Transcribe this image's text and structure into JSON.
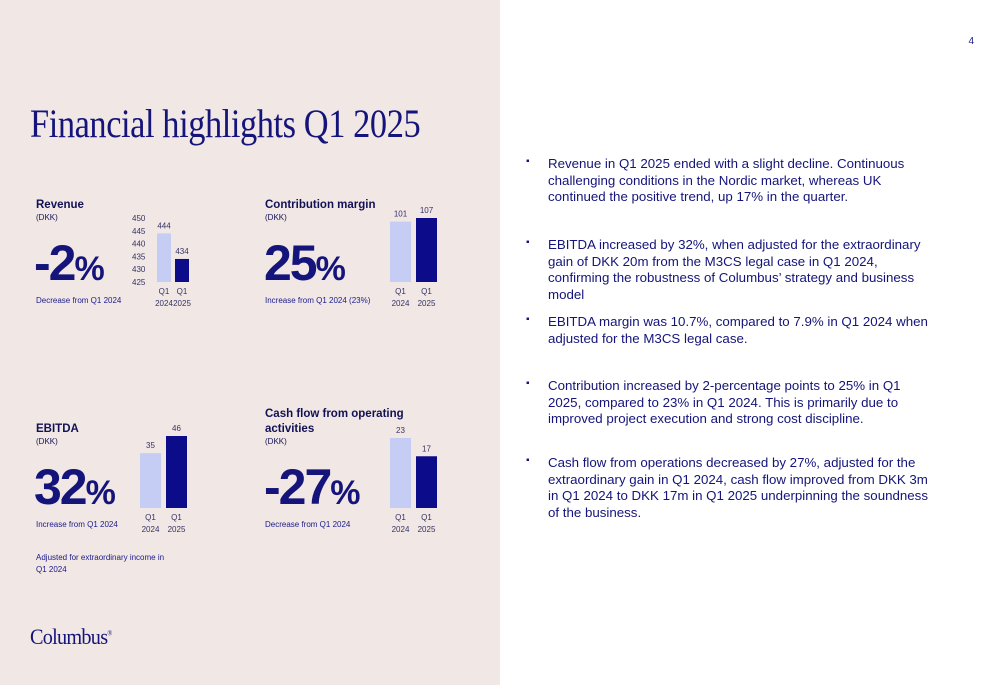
{
  "page": {
    "number": "4",
    "title": "Financial highlights Q1 2025"
  },
  "colors": {
    "accent": "#0c0c8a",
    "prior": "#c5cdf4",
    "panel": "#f1e7e4",
    "text": "#14147a"
  },
  "kpis": [
    {
      "title": "Revenue",
      "unit": "(DKK)",
      "value": "-2",
      "pct": "%",
      "caption": "Decrease from Q1 2024"
    },
    {
      "title": "Contribution margin",
      "unit": "(DKK)",
      "value": "25",
      "pct": "%",
      "caption": "Increase from Q1 2024 (23%)"
    },
    {
      "title": "EBITDA",
      "unit": "(DKK)",
      "value": "32",
      "pct": "%",
      "caption": "Increase from Q1 2024",
      "note": "Adjusted for extraordinary income in Q1 2024"
    },
    {
      "title_line1": "Cash flow from operating",
      "title_line2": "activities",
      "unit": "(DKK)",
      "value": "-27",
      "pct": "%",
      "caption": "Decrease from Q1 2024"
    }
  ],
  "chart_data": [
    {
      "type": "bar",
      "title": "Revenue",
      "categories": [
        [
          "Q1",
          "2024"
        ],
        [
          "Q1",
          "2025"
        ]
      ],
      "values": [
        444,
        434
      ],
      "yticks": [
        450,
        445,
        440,
        435,
        430,
        425
      ],
      "ylim": [
        425,
        450
      ],
      "show_yaxis": true
    },
    {
      "type": "bar",
      "title": "Contribution margin",
      "categories": [
        [
          "Q1",
          "2024"
        ],
        [
          "Q1",
          "2025"
        ]
      ],
      "values": [
        101,
        107
      ],
      "ylim": [
        0,
        107
      ]
    },
    {
      "type": "bar",
      "title": "EBITDA",
      "categories": [
        [
          "Q1",
          "2024"
        ],
        [
          "Q1",
          "2025"
        ]
      ],
      "values": [
        35,
        46
      ],
      "ylim": [
        0,
        46
      ]
    },
    {
      "type": "bar",
      "title": "Cash flow from operating activities",
      "categories": [
        [
          "Q1",
          "2024"
        ],
        [
          "Q1",
          "2025"
        ]
      ],
      "values": [
        23,
        17
      ],
      "ylim": [
        0,
        23
      ]
    }
  ],
  "bullets": [
    "Revenue in Q1 2025 ended with a slight decline. Continuous challenging conditions in the Nordic market, whereas UK continued the positive trend, up 17% in the quarter.",
    "EBITDA increased by 32%, when adjusted for the extraordinary gain of DKK 20m from the M3CS legal case in Q1 2024, confirming the robustness of Columbus’ strategy and business model",
    "EBITDA margin was 10.7%, compared to 7.9% in Q1 2024 when adjusted for the M3CS legal case.",
    "Contribution increased by 2-percentage points to 25% in Q1 2025, compared to 23% in Q1 2024. This is primarily due to improved project execution and strong cost discipline.",
    "Cash flow from operations decreased by 27%, adjusted for the extraordinary gain in Q1 2024, cash flow improved from DKK 3m in Q1 2024 to DKK 17m in Q1 2025 underpinning the soundness of the business."
  ],
  "bullet_marker": "▪",
  "logo": {
    "text": "Columbus",
    "mark": "®"
  }
}
